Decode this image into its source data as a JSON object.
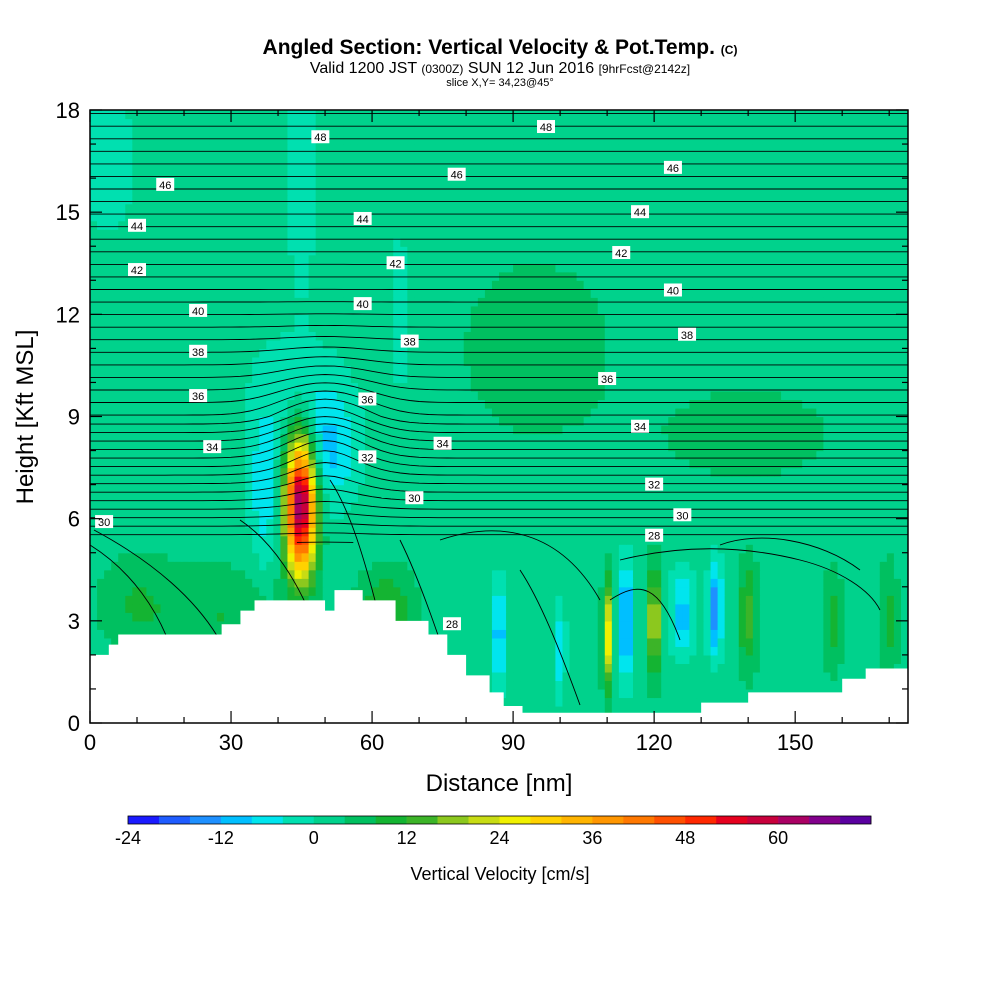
{
  "header": {
    "title": "Angled Section: Vertical Velocity & Pot.Temp.",
    "title_suffix": "(C)",
    "valid_main": "Valid 1200 JST",
    "valid_zulu": "(0300Z)",
    "valid_date": "SUN 12 Jun 2016",
    "forecast": "[9hrFcst@2142z]",
    "slice": "slice X,Y= 34,23@45°"
  },
  "chart_data": {
    "type": "heatmap",
    "xlabel": "Distance [nm]",
    "ylabel": "Height [Kft MSL]",
    "xlim": [
      0,
      174
    ],
    "ylim": [
      0,
      18
    ],
    "xticks": [
      0,
      30,
      60,
      90,
      120,
      150
    ],
    "yticks": [
      0,
      3,
      6,
      9,
      12,
      15,
      18
    ],
    "colorbar": {
      "title": "Vertical Velocity [cm/s]",
      "labels": [
        "-24",
        "-12",
        "0",
        "12",
        "24",
        "36",
        "48",
        "60"
      ],
      "bins": [
        -24,
        -20,
        -16,
        -12,
        -8,
        -4,
        0,
        4,
        8,
        12,
        16,
        20,
        24,
        28,
        32,
        36,
        40,
        44,
        48,
        52,
        56,
        60,
        64,
        68
      ],
      "colors": [
        "#1a1aff",
        "#1f5cff",
        "#1e90ff",
        "#00bfff",
        "#00e5ee",
        "#00e0b0",
        "#00d28c",
        "#00c060",
        "#14b432",
        "#3cb428",
        "#8cc81e",
        "#c8dc14",
        "#f0f000",
        "#ffd200",
        "#ffb400",
        "#ff9600",
        "#ff7800",
        "#ff5000",
        "#ff2800",
        "#e6001e",
        "#c8003c",
        "#aa0064",
        "#82008c",
        "#5a00a0"
      ]
    },
    "terrain_kft": [
      [
        0,
        2.0
      ],
      [
        4,
        2.3
      ],
      [
        6,
        2.6
      ],
      [
        28,
        2.9
      ],
      [
        32,
        3.3
      ],
      [
        35,
        3.6
      ],
      [
        50,
        3.3
      ],
      [
        52,
        3.9
      ],
      [
        58,
        3.6
      ],
      [
        65,
        3.0
      ],
      [
        72,
        2.6
      ],
      [
        76,
        2.0
      ],
      [
        80,
        1.4
      ],
      [
        85,
        0.9
      ],
      [
        88,
        0.5
      ],
      [
        92,
        0.3
      ],
      [
        130,
        0.6
      ],
      [
        140,
        0.9
      ],
      [
        160,
        1.3
      ],
      [
        165,
        1.6
      ],
      [
        174,
        1.6
      ]
    ],
    "updraft_max": {
      "x": 45,
      "y": 6.5,
      "value": 64
    },
    "theta_labels": [
      {
        "text": "30",
        "x": 3,
        "y": 5.9
      },
      {
        "text": "34",
        "x": 26,
        "y": 8.1
      },
      {
        "text": "36",
        "x": 23,
        "y": 9.6
      },
      {
        "text": "38",
        "x": 23,
        "y": 10.9
      },
      {
        "text": "40",
        "x": 23,
        "y": 12.1
      },
      {
        "text": "42",
        "x": 10,
        "y": 13.3
      },
      {
        "text": "44",
        "x": 10,
        "y": 14.6
      },
      {
        "text": "46",
        "x": 16,
        "y": 15.8
      },
      {
        "text": "48",
        "x": 49,
        "y": 17.2
      },
      {
        "text": "48",
        "x": 97,
        "y": 17.5
      },
      {
        "text": "46",
        "x": 78,
        "y": 16.1
      },
      {
        "text": "46",
        "x": 124,
        "y": 16.3
      },
      {
        "text": "44",
        "x": 58,
        "y": 14.8
      },
      {
        "text": "44",
        "x": 117,
        "y": 15.0
      },
      {
        "text": "42",
        "x": 65,
        "y": 13.5
      },
      {
        "text": "42",
        "x": 113,
        "y": 13.8
      },
      {
        "text": "40",
        "x": 58,
        "y": 12.3
      },
      {
        "text": "40",
        "x": 124,
        "y": 12.7
      },
      {
        "text": "38",
        "x": 68,
        "y": 11.2
      },
      {
        "text": "38",
        "x": 127,
        "y": 11.4
      },
      {
        "text": "36",
        "x": 59,
        "y": 9.5
      },
      {
        "text": "36",
        "x": 110,
        "y": 10.1
      },
      {
        "text": "34",
        "x": 75,
        "y": 8.2
      },
      {
        "text": "34",
        "x": 117,
        "y": 8.7
      },
      {
        "text": "32",
        "x": 59,
        "y": 7.8
      },
      {
        "text": "32",
        "x": 120,
        "y": 7.0
      },
      {
        "text": "30",
        "x": 69,
        "y": 6.6
      },
      {
        "text": "30",
        "x": 126,
        "y": 6.1
      },
      {
        "text": "28",
        "x": 120,
        "y": 5.5
      },
      {
        "text": "28",
        "x": 77,
        "y": 2.9
      }
    ]
  }
}
